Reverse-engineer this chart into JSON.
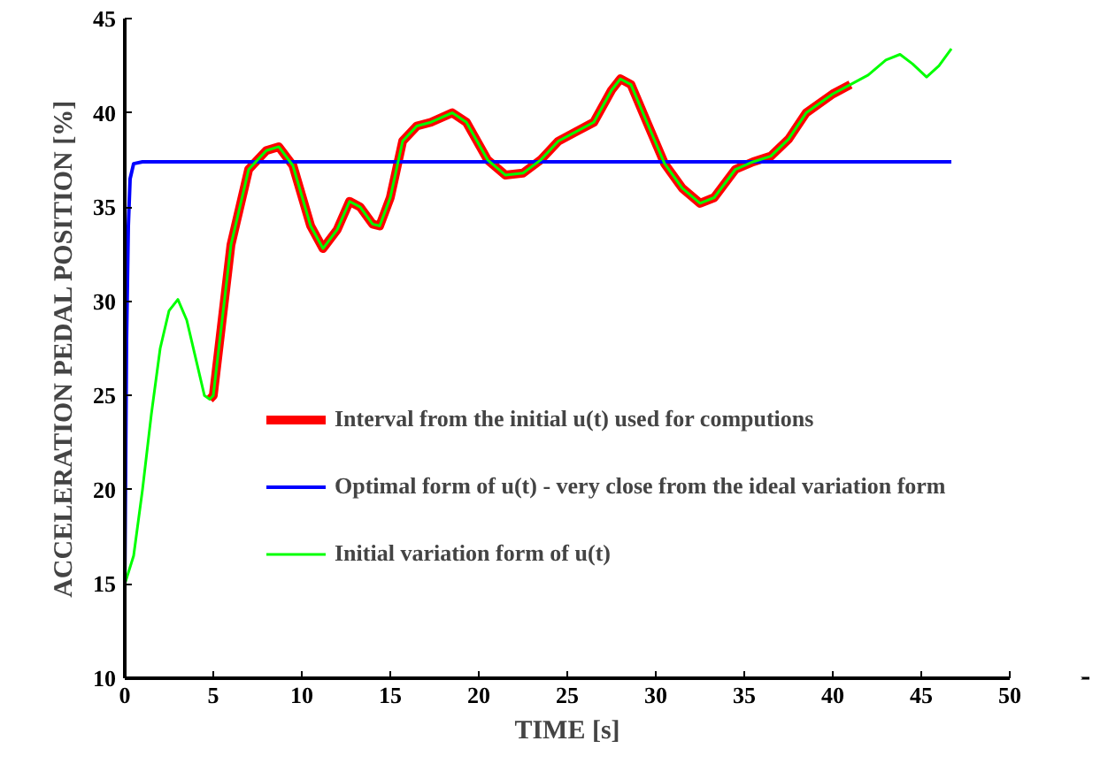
{
  "chart_data": {
    "type": "line",
    "xlabel": "TIME [s]",
    "ylabel": "ACCELERATION PEDAL POSITION [%]",
    "xlim": [
      0,
      50
    ],
    "ylim": [
      10,
      45
    ],
    "xticks": [
      0,
      5,
      10,
      15,
      20,
      25,
      30,
      35,
      40,
      45,
      50
    ],
    "yticks": [
      10,
      15,
      20,
      25,
      30,
      35,
      40,
      45
    ],
    "grid": false,
    "legend": "bottom",
    "line_style": "solid",
    "marker": "none",
    "series": [
      {
        "name": "Interval from the initial u(t) used for computions",
        "color": "#ff0000",
        "x": [
          4.8,
          5,
          6,
          7,
          8,
          8.7,
          9.5,
          10.5,
          11.2,
          12,
          12.7,
          13.3,
          14,
          14.4,
          15,
          15.7,
          16.5,
          17.3,
          18.5,
          19.3,
          20.5,
          21.5,
          22.5,
          23.5,
          24.5,
          25.5,
          26.5,
          27.5,
          28,
          28.6,
          29.5,
          30.5,
          31.5,
          32.5,
          33.3,
          34.5,
          35.5,
          36.5,
          37.5,
          38.5,
          40,
          41
        ],
        "values": [
          24.8,
          25,
          33,
          37,
          38,
          38.2,
          37.2,
          34,
          32.8,
          33.8,
          35.3,
          35,
          34.1,
          34,
          35.5,
          38.5,
          39.3,
          39.5,
          40,
          39.5,
          37.5,
          36.7,
          36.8,
          37.5,
          38.5,
          39,
          39.5,
          41.2,
          41.8,
          41.5,
          39.5,
          37.3,
          36,
          35.2,
          35.5,
          37,
          37.4,
          37.7,
          38.6,
          40,
          41,
          41.5
        ]
      },
      {
        "name": "Optimal form of u(t) - very close from the ideal variation form",
        "color": "#0000ff",
        "x": [
          0,
          0.1,
          0.2,
          0.3,
          0.5,
          1,
          46.7
        ],
        "values": [
          15,
          28,
          34,
          36.5,
          37.3,
          37.4,
          37.4
        ]
      },
      {
        "name": "Initial variation form of u(t)",
        "color": "#00ff00",
        "x": [
          0,
          0.5,
          1,
          1.5,
          2,
          2.5,
          3,
          3.5,
          4,
          4.5,
          4.8,
          5,
          6,
          7,
          8,
          8.7,
          9.5,
          10.5,
          11.2,
          12,
          12.7,
          13.3,
          14,
          14.4,
          15,
          15.7,
          16.5,
          17.3,
          18.5,
          19.3,
          20.5,
          21.5,
          22.5,
          23.5,
          24.5,
          25.5,
          26.5,
          27.5,
          28,
          28.6,
          29.5,
          30.5,
          31.5,
          32.5,
          33.3,
          34.5,
          35.5,
          36.5,
          37.5,
          38.5,
          40,
          41,
          42,
          43,
          43.8,
          44.5,
          45.3,
          46,
          46.7
        ],
        "values": [
          15,
          16.5,
          20,
          24,
          27.5,
          29.5,
          30.1,
          29,
          27,
          25,
          24.8,
          25,
          33,
          37,
          38,
          38.2,
          37.2,
          34,
          32.8,
          33.8,
          35.3,
          35,
          34.1,
          34,
          35.5,
          38.5,
          39.3,
          39.5,
          40,
          39.5,
          37.5,
          36.7,
          36.8,
          37.5,
          38.5,
          39,
          39.5,
          41.2,
          41.8,
          41.5,
          39.5,
          37.3,
          36,
          35.2,
          35.5,
          37,
          37.4,
          37.7,
          38.6,
          40,
          41,
          41.5,
          42,
          42.8,
          43.1,
          42.6,
          41.9,
          42.5,
          43.4
        ]
      }
    ]
  }
}
